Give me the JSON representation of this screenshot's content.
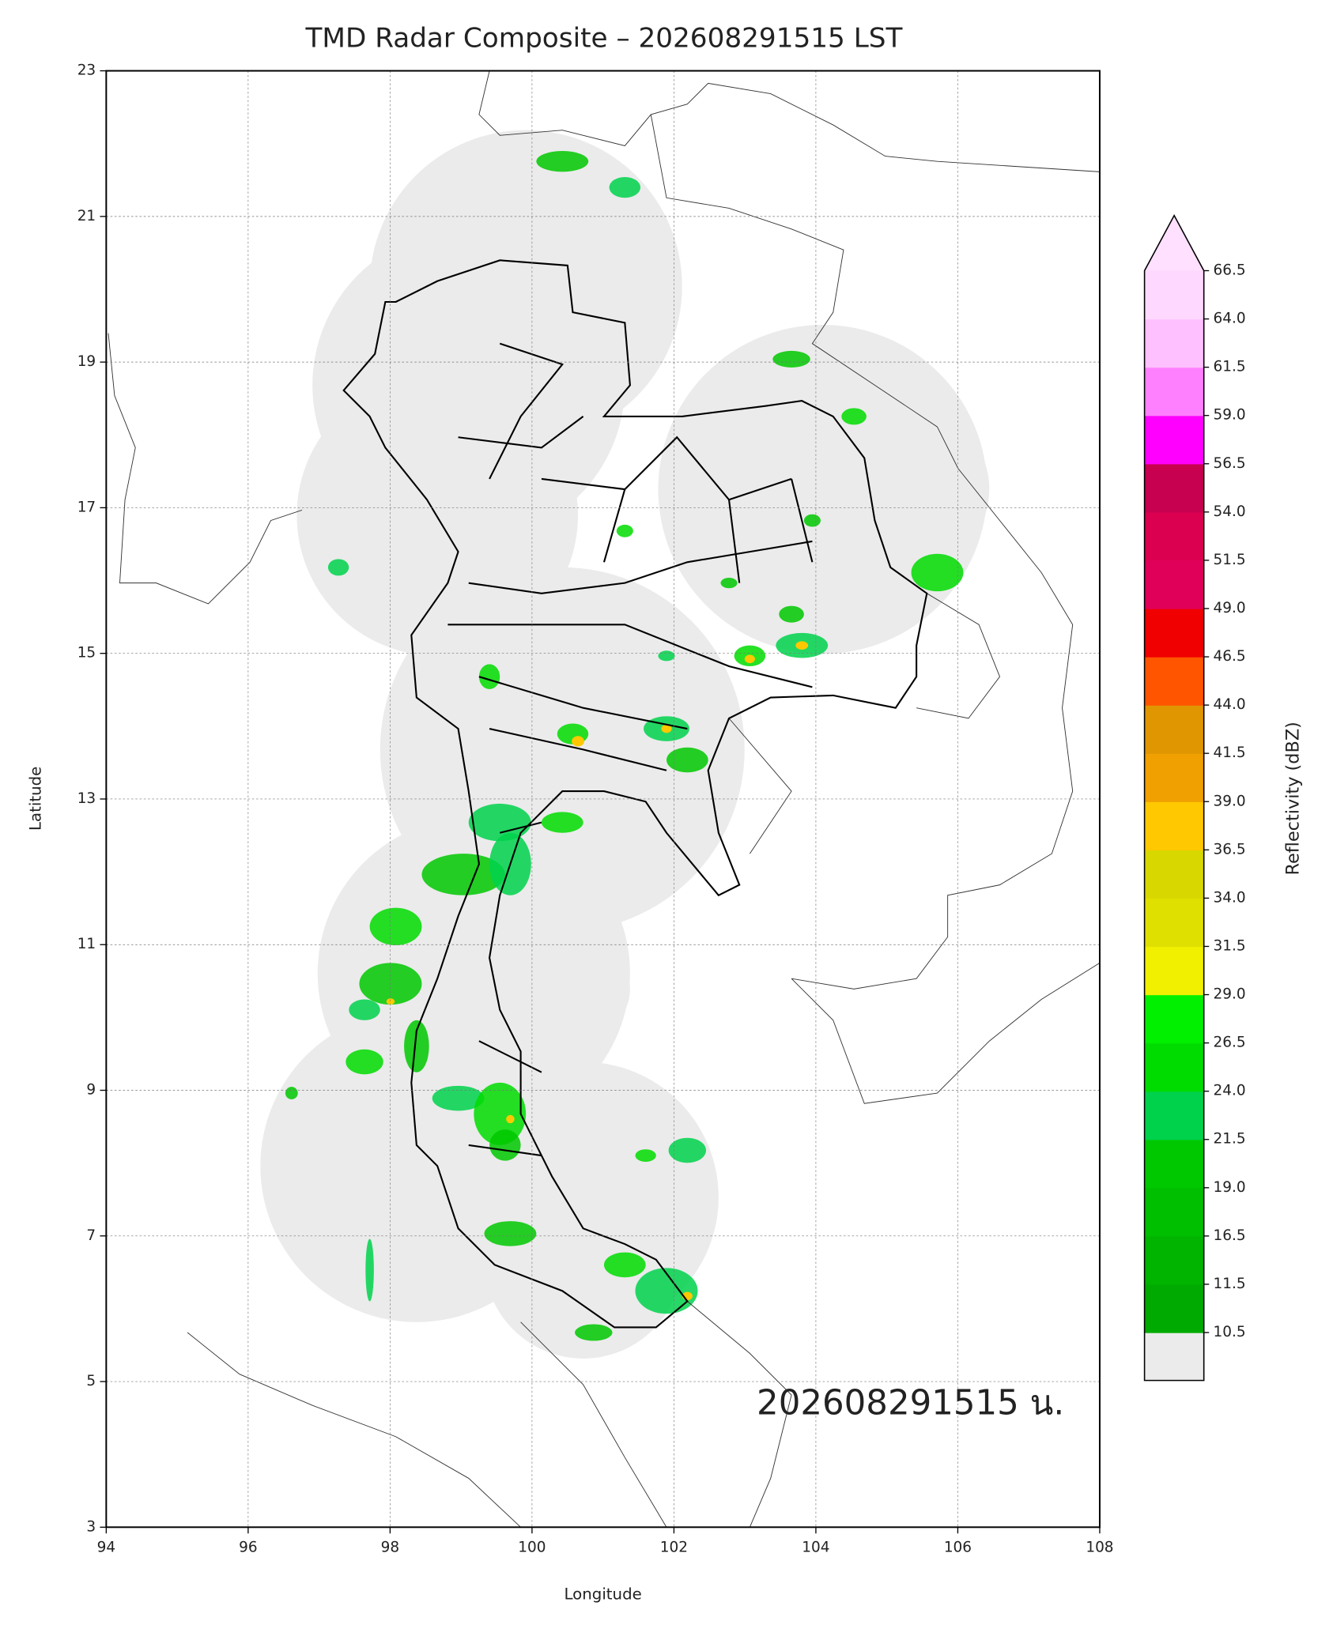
{
  "chart_data": {
    "type": "map",
    "title": "TMD Radar Composite – 202608291515 LST",
    "xlabel": "Longitude",
    "ylabel": "Latitude",
    "xlim": [
      94,
      108
    ],
    "ylim": [
      3,
      23
    ],
    "xticks": [
      94,
      96,
      98,
      100,
      102,
      104,
      106,
      108
    ],
    "yticks": [
      3,
      5,
      7,
      9,
      11,
      13,
      15,
      17,
      19,
      21,
      23
    ],
    "grid": true,
    "annotation": "202608291515 น.",
    "colorbar": {
      "label": "Reflectivity (dBZ)",
      "ticks": [
        10.5,
        11.5,
        16.5,
        {
          "value": 19,
          "label": "19.0"
        },
        21.5,
        {
          "value": 24,
          "label": "24.0"
        },
        26.5,
        {
          "value": 29,
          "label": "29.0"
        },
        31.5,
        {
          "value": 34,
          "label": "34.0"
        },
        36.5,
        {
          "value": 39,
          "label": "39.0"
        },
        41.5,
        {
          "value": 44,
          "label": "44.0"
        },
        46.5,
        {
          "value": 49,
          "label": "49.0"
        },
        51.5,
        {
          "value": 54,
          "label": "54.0"
        },
        56.5,
        {
          "value": 59,
          "label": "59.0"
        },
        61.5,
        {
          "value": 64,
          "label": "64.0"
        },
        66.5
      ],
      "colors": [
        "#00aa00",
        "#00b400",
        "#00be00",
        "#00c800",
        "#00d24c",
        "#00dc00",
        "#00f000",
        "#f0f000",
        "#e0e000",
        "#d8d800",
        "#ffc800",
        "#f0a000",
        "#e09600",
        "#ff5500",
        "#f00000",
        "#e0005a",
        "#dc0050",
        "#c80050",
        "#ff00ff",
        "#ff80ff",
        "#ffc0ff",
        "#ffd8ff"
      ],
      "under_color": "#ebebeb",
      "over_color": "#ffe0ff"
    }
  }
}
